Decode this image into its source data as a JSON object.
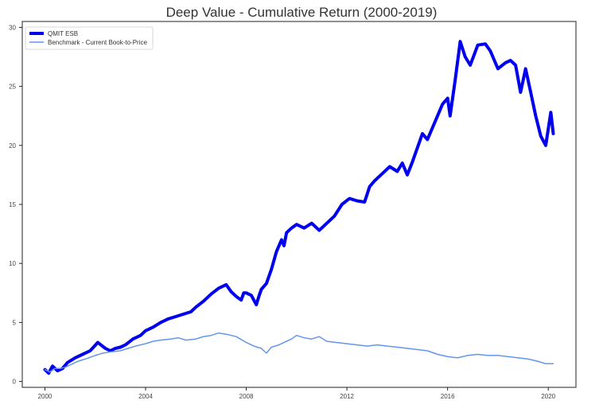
{
  "chart_data": {
    "type": "line",
    "title": "Deep Value - Cumulative Return (2000-2019)",
    "xlabel": "",
    "ylabel": "",
    "xlim": [
      1999.1,
      2021.1
    ],
    "ylim": [
      -0.5,
      30.5
    ],
    "xticks": [
      2000,
      2004,
      2008,
      2012,
      2016,
      2020
    ],
    "xtick_labels": [
      "2000",
      "2004",
      "2008",
      "2012",
      "2016",
      "2020"
    ],
    "yticks": [
      0,
      5,
      10,
      15,
      20,
      25,
      30
    ],
    "ytick_labels": [
      "0",
      "5",
      "10",
      "15",
      "20",
      "25",
      "30"
    ],
    "grid": false,
    "legend_position": "top-left",
    "series": [
      {
        "name": "QMIT ESB",
        "color": "#0000ee",
        "x": [
          2000.0,
          2000.15,
          2000.3,
          2000.5,
          2000.7,
          2000.9,
          2001.2,
          2001.5,
          2001.8,
          2002.1,
          2002.4,
          2002.6,
          2002.8,
          2003.0,
          2003.2,
          2003.5,
          2003.8,
          2004.0,
          2004.3,
          2004.6,
          2004.9,
          2005.2,
          2005.5,
          2005.8,
          2006.0,
          2006.3,
          2006.6,
          2006.9,
          2007.2,
          2007.4,
          2007.6,
          2007.8,
          2007.9,
          2008.0,
          2008.2,
          2008.4,
          2008.5,
          2008.6,
          2008.8,
          2009.0,
          2009.2,
          2009.4,
          2009.5,
          2009.6,
          2009.8,
          2010.0,
          2010.3,
          2010.6,
          2010.9,
          2011.2,
          2011.5,
          2011.8,
          2012.1,
          2012.4,
          2012.7,
          2012.9,
          2013.1,
          2013.4,
          2013.7,
          2014.0,
          2014.2,
          2014.4,
          2014.6,
          2014.8,
          2015.0,
          2015.2,
          2015.4,
          2015.6,
          2015.8,
          2016.0,
          2016.1,
          2016.3,
          2016.5,
          2016.7,
          2016.9,
          2017.2,
          2017.5,
          2017.7,
          2018.0,
          2018.3,
          2018.5,
          2018.7,
          2018.9,
          2019.1,
          2019.3,
          2019.5,
          2019.7,
          2019.9,
          2020.1,
          2020.2
        ],
        "values": [
          1.0,
          0.7,
          1.3,
          0.9,
          1.1,
          1.6,
          2.0,
          2.3,
          2.6,
          3.3,
          2.8,
          2.6,
          2.8,
          2.9,
          3.1,
          3.6,
          3.9,
          4.3,
          4.6,
          5.0,
          5.3,
          5.5,
          5.7,
          5.9,
          6.3,
          6.8,
          7.4,
          7.9,
          8.2,
          7.6,
          7.2,
          6.9,
          7.5,
          7.5,
          7.3,
          6.5,
          7.2,
          7.8,
          8.3,
          9.5,
          11.0,
          12.0,
          11.5,
          12.6,
          13.0,
          13.3,
          13.0,
          13.4,
          12.8,
          13.4,
          14.0,
          15.0,
          15.5,
          15.3,
          15.2,
          16.5,
          17.0,
          17.6,
          18.2,
          17.8,
          18.5,
          17.5,
          18.6,
          19.8,
          21.0,
          20.5,
          21.5,
          22.5,
          23.5,
          24.0,
          22.5,
          25.5,
          28.8,
          27.5,
          26.8,
          28.5,
          28.6,
          28.0,
          26.5,
          27.0,
          27.2,
          26.8,
          24.5,
          26.5,
          24.5,
          22.5,
          20.8,
          20.0,
          22.8,
          21.0
        ],
        "line_width": 4
      },
      {
        "name": "Benchmark - Current Book-to-Price",
        "color": "#6495ed",
        "x": [
          2000.0,
          2000.2,
          2000.4,
          2000.6,
          2000.8,
          2001.0,
          2001.3,
          2001.6,
          2002.0,
          2002.3,
          2002.6,
          2003.0,
          2003.3,
          2003.6,
          2004.0,
          2004.3,
          2004.6,
          2005.0,
          2005.3,
          2005.6,
          2006.0,
          2006.3,
          2006.6,
          2006.9,
          2007.2,
          2007.6,
          2008.0,
          2008.3,
          2008.6,
          2008.8,
          2009.0,
          2009.3,
          2009.6,
          2009.8,
          2010.0,
          2010.3,
          2010.6,
          2010.9,
          2011.2,
          2011.6,
          2012.0,
          2012.4,
          2012.8,
          2013.2,
          2013.6,
          2014.0,
          2014.4,
          2014.8,
          2015.2,
          2015.6,
          2016.0,
          2016.4,
          2016.8,
          2017.2,
          2017.6,
          2018.0,
          2018.4,
          2018.8,
          2019.2,
          2019.6,
          2019.9,
          2020.2
        ],
        "values": [
          1.0,
          0.8,
          1.1,
          1.1,
          1.2,
          1.4,
          1.7,
          1.9,
          2.2,
          2.4,
          2.5,
          2.6,
          2.8,
          3.0,
          3.2,
          3.4,
          3.5,
          3.6,
          3.7,
          3.5,
          3.6,
          3.8,
          3.9,
          4.1,
          4.0,
          3.8,
          3.3,
          3.0,
          2.8,
          2.4,
          2.9,
          3.1,
          3.4,
          3.6,
          3.9,
          3.7,
          3.6,
          3.8,
          3.4,
          3.3,
          3.2,
          3.1,
          3.0,
          3.1,
          3.0,
          2.9,
          2.8,
          2.7,
          2.6,
          2.3,
          2.1,
          2.0,
          2.2,
          2.3,
          2.2,
          2.2,
          2.1,
          2.0,
          1.9,
          1.7,
          1.5,
          1.5
        ],
        "line_width": 1.5
      }
    ]
  }
}
